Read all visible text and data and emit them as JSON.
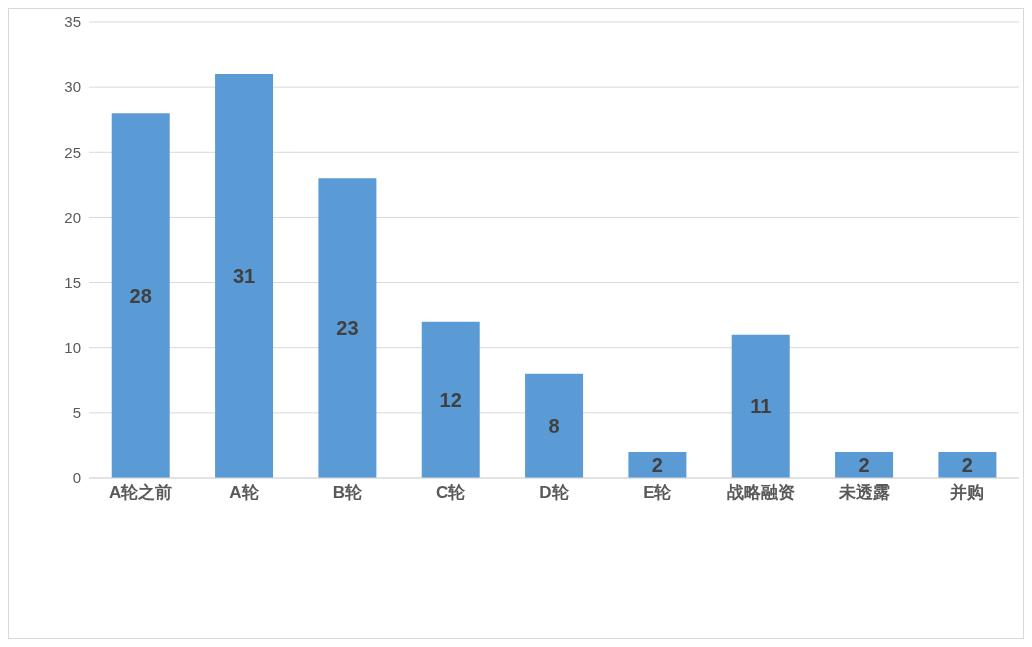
{
  "chart_data": {
    "type": "bar",
    "categories": [
      "A轮之前",
      "A轮",
      "B轮",
      "C轮",
      "D轮",
      "E轮",
      "战略融资",
      "未透露",
      "并购"
    ],
    "values": [
      28,
      31,
      23,
      12,
      8,
      2,
      11,
      2,
      2
    ],
    "color": "#5b9bd5",
    "ylim": [
      0,
      35
    ],
    "yticks": [
      0,
      5,
      10,
      15,
      20,
      25,
      30,
      35
    ],
    "grid": "y",
    "data_labels": true
  }
}
